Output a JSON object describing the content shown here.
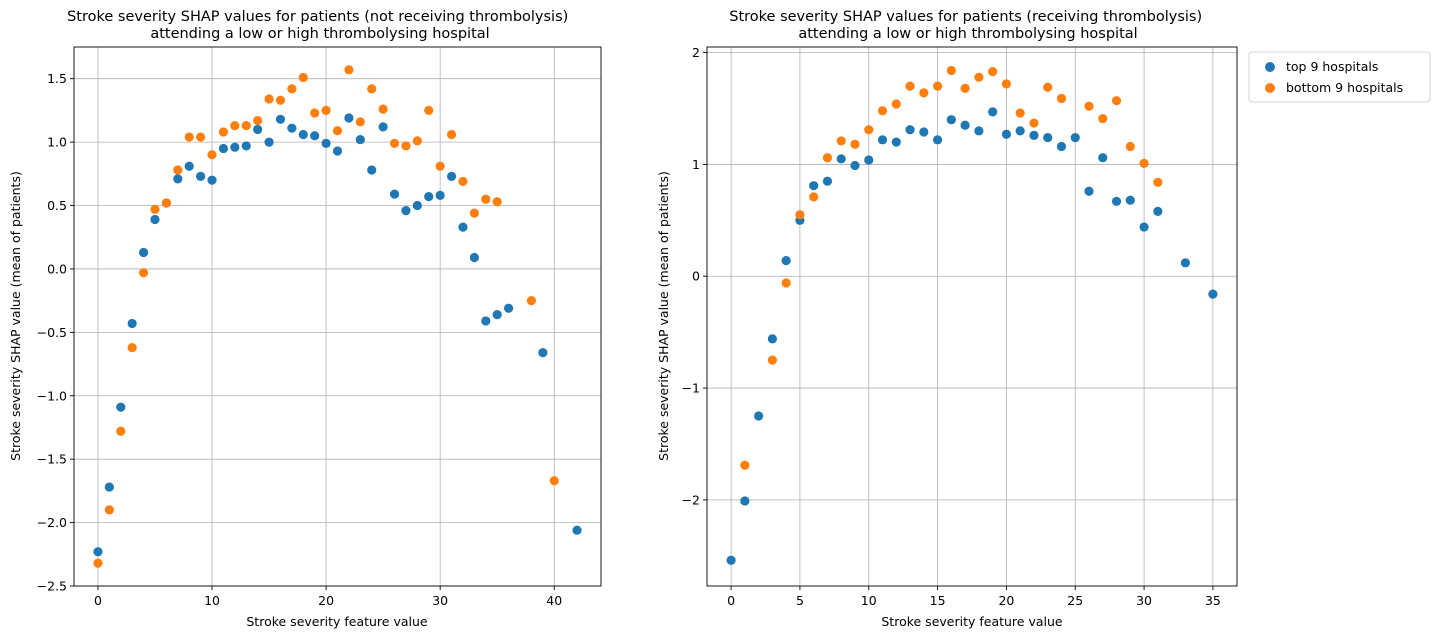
{
  "chart_data": [
    {
      "type": "scatter",
      "title": "Stroke severity SHAP values for patients (not receiving thrombolysis)\nattending a low or high thrombolysing hospital",
      "xlabel": "Stroke severity feature value",
      "ylabel": "Stroke severity SHAP value (mean of patients)",
      "xlim": [
        -2.1,
        44.1
      ],
      "ylim": [
        -2.5,
        1.75
      ],
      "xticks": [
        0,
        10,
        20,
        30,
        40
      ],
      "yticks": [
        -2.5,
        -2.0,
        -1.5,
        -1.0,
        -0.5,
        0.0,
        0.5,
        1.0,
        1.5
      ],
      "ytick_labels": [
        "−2.5",
        "−2.0",
        "−1.5",
        "−1.0",
        "−0.5",
        "0.0",
        "0.5",
        "1.0",
        "1.5"
      ],
      "grid": true,
      "series": [
        {
          "name": "top 9 hospitals",
          "color": "#1f77b4",
          "points": [
            [
              0,
              -2.23
            ],
            [
              1,
              -1.72
            ],
            [
              2,
              -1.09
            ],
            [
              3,
              -0.43
            ],
            [
              4,
              0.13
            ],
            [
              5,
              0.39
            ],
            [
              6,
              0.52
            ],
            [
              7,
              0.71
            ],
            [
              8,
              0.81
            ],
            [
              9,
              0.73
            ],
            [
              10,
              0.7
            ],
            [
              11,
              0.95
            ],
            [
              12,
              0.96
            ],
            [
              13,
              0.97
            ],
            [
              14,
              1.1
            ],
            [
              15,
              1.0
            ],
            [
              16,
              1.18
            ],
            [
              17,
              1.11
            ],
            [
              18,
              1.06
            ],
            [
              19,
              1.05
            ],
            [
              20,
              0.99
            ],
            [
              21,
              0.93
            ],
            [
              22,
              1.19
            ],
            [
              23,
              1.02
            ],
            [
              24,
              0.78
            ],
            [
              25,
              1.12
            ],
            [
              26,
              0.59
            ],
            [
              27,
              0.46
            ],
            [
              28,
              0.5
            ],
            [
              29,
              0.57
            ],
            [
              30,
              0.58
            ],
            [
              31,
              0.73
            ],
            [
              32,
              0.33
            ],
            [
              33,
              0.09
            ],
            [
              34,
              -0.41
            ],
            [
              35,
              -0.36
            ],
            [
              36,
              -0.31
            ],
            [
              39,
              -0.66
            ],
            [
              42,
              -2.06
            ]
          ]
        },
        {
          "name": "bottom 9 hospitals",
          "color": "#ff7f0e",
          "points": [
            [
              0,
              -2.32
            ],
            [
              1,
              -1.9
            ],
            [
              2,
              -1.28
            ],
            [
              3,
              -0.62
            ],
            [
              4,
              -0.03
            ],
            [
              5,
              0.47
            ],
            [
              6,
              0.52
            ],
            [
              7,
              0.78
            ],
            [
              8,
              1.04
            ],
            [
              9,
              1.04
            ],
            [
              10,
              0.9
            ],
            [
              11,
              1.08
            ],
            [
              12,
              1.13
            ],
            [
              13,
              1.13
            ],
            [
              14,
              1.17
            ],
            [
              15,
              1.34
            ],
            [
              16,
              1.33
            ],
            [
              17,
              1.42
            ],
            [
              18,
              1.51
            ],
            [
              19,
              1.23
            ],
            [
              20,
              1.25
            ],
            [
              21,
              1.09
            ],
            [
              22,
              1.57
            ],
            [
              23,
              1.16
            ],
            [
              24,
              1.42
            ],
            [
              25,
              1.26
            ],
            [
              26,
              0.99
            ],
            [
              27,
              0.97
            ],
            [
              28,
              1.01
            ],
            [
              29,
              1.25
            ],
            [
              30,
              0.81
            ],
            [
              31,
              1.06
            ],
            [
              32,
              0.69
            ],
            [
              33,
              0.44
            ],
            [
              34,
              0.55
            ],
            [
              35,
              0.53
            ],
            [
              38,
              -0.25
            ],
            [
              40,
              -1.67
            ]
          ]
        }
      ]
    },
    {
      "type": "scatter",
      "title": "Stroke severity SHAP values for patients (receiving thrombolysis)\nattending a low or high thrombolysing hospital",
      "xlabel": "Stroke severity feature value",
      "ylabel": "Stroke severity SHAP value (mean of patients)",
      "xlim": [
        -1.75,
        36.75
      ],
      "ylim": [
        -2.77,
        2.05
      ],
      "xticks": [
        0,
        5,
        10,
        15,
        20,
        25,
        30,
        35
      ],
      "yticks": [
        -2,
        -1,
        0,
        1,
        2
      ],
      "ytick_labels": [
        "−2",
        "−1",
        "0",
        "1",
        "2"
      ],
      "grid": true,
      "legend": {
        "placement": "outside-upper-right",
        "entries": [
          "top 9 hospitals",
          "bottom 9 hospitals"
        ]
      },
      "series": [
        {
          "name": "top 9 hospitals",
          "color": "#1f77b4",
          "points": [
            [
              0,
              -2.54
            ],
            [
              1,
              -2.01
            ],
            [
              2,
              -1.25
            ],
            [
              3,
              -0.56
            ],
            [
              4,
              0.14
            ],
            [
              5,
              0.5
            ],
            [
              6,
              0.81
            ],
            [
              7,
              0.85
            ],
            [
              8,
              1.05
            ],
            [
              9,
              0.99
            ],
            [
              10,
              1.04
            ],
            [
              11,
              1.22
            ],
            [
              12,
              1.2
            ],
            [
              13,
              1.31
            ],
            [
              14,
              1.29
            ],
            [
              15,
              1.22
            ],
            [
              16,
              1.4
            ],
            [
              17,
              1.35
            ],
            [
              18,
              1.3
            ],
            [
              19,
              1.47
            ],
            [
              20,
              1.27
            ],
            [
              21,
              1.3
            ],
            [
              22,
              1.26
            ],
            [
              23,
              1.24
            ],
            [
              24,
              1.16
            ],
            [
              25,
              1.24
            ],
            [
              26,
              0.76
            ],
            [
              27,
              1.06
            ],
            [
              28,
              0.67
            ],
            [
              29,
              0.68
            ],
            [
              30,
              0.44
            ],
            [
              31,
              0.58
            ],
            [
              33,
              0.12
            ],
            [
              35,
              -0.16
            ]
          ]
        },
        {
          "name": "bottom 9 hospitals",
          "color": "#ff7f0e",
          "points": [
            [
              1,
              -1.69
            ],
            [
              3,
              -0.75
            ],
            [
              4,
              -0.06
            ],
            [
              5,
              0.55
            ],
            [
              6,
              0.71
            ],
            [
              7,
              1.06
            ],
            [
              8,
              1.21
            ],
            [
              9,
              1.18
            ],
            [
              10,
              1.31
            ],
            [
              11,
              1.48
            ],
            [
              12,
              1.54
            ],
            [
              13,
              1.7
            ],
            [
              14,
              1.64
            ],
            [
              15,
              1.7
            ],
            [
              16,
              1.84
            ],
            [
              17,
              1.68
            ],
            [
              18,
              1.78
            ],
            [
              19,
              1.83
            ],
            [
              20,
              1.72
            ],
            [
              21,
              1.46
            ],
            [
              22,
              1.37
            ],
            [
              23,
              1.69
            ],
            [
              24,
              1.59
            ],
            [
              26,
              1.52
            ],
            [
              27,
              1.41
            ],
            [
              28,
              1.57
            ],
            [
              29,
              1.16
            ],
            [
              30,
              1.01
            ],
            [
              31,
              0.84
            ]
          ]
        }
      ]
    }
  ]
}
